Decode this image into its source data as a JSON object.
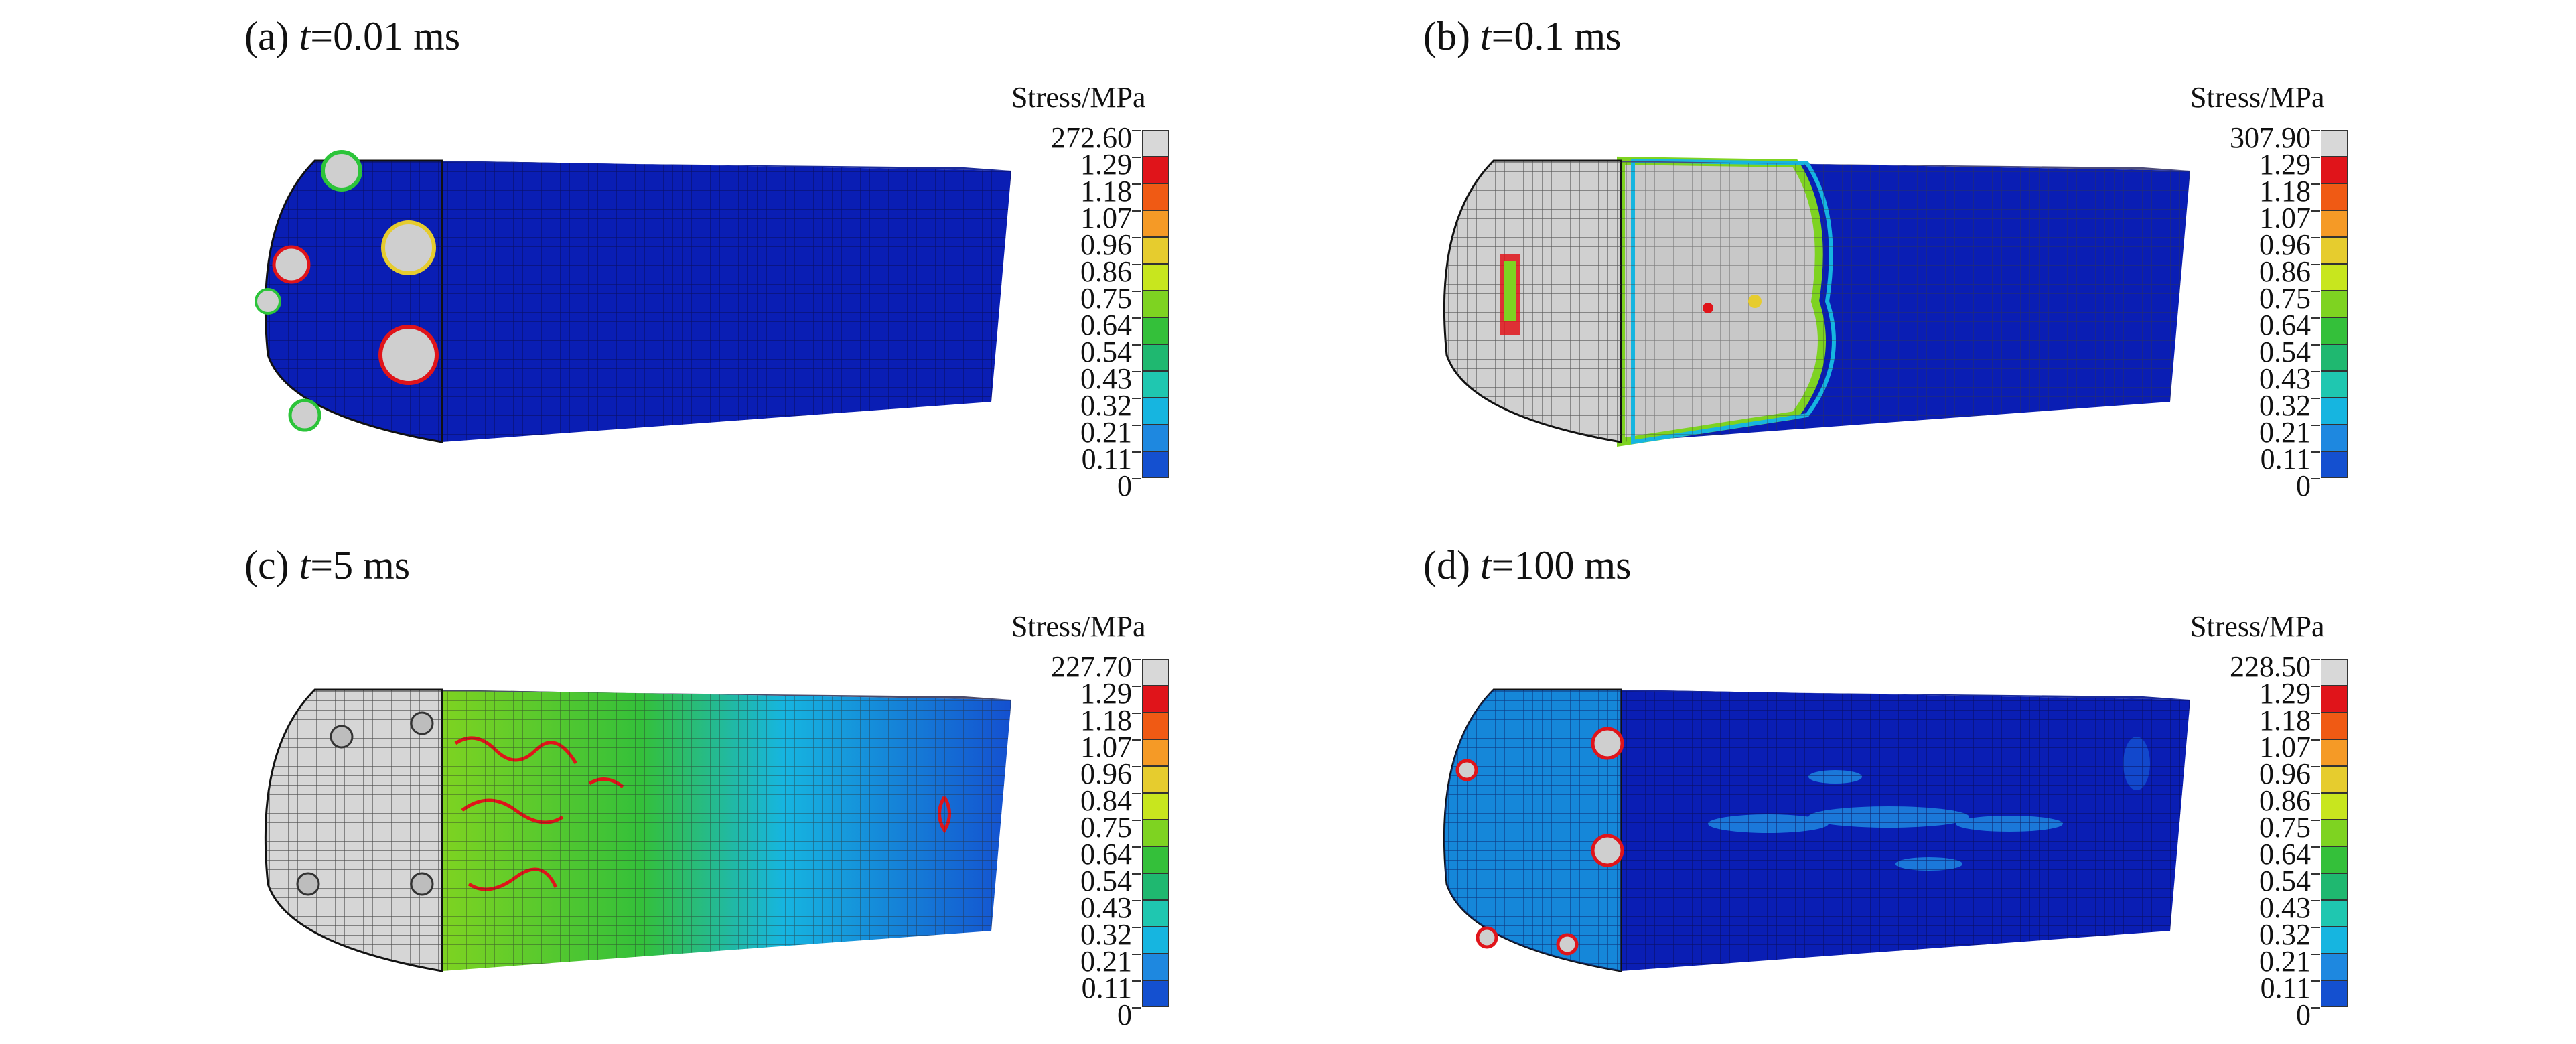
{
  "panels": [
    {
      "prefix": "(a) ",
      "tvar": "t",
      "time": "=0.01 ms",
      "legend_title": "Stress/MPa",
      "levels": [
        "272.60",
        "1.29",
        "1.18",
        "1.07",
        "0.96",
        "0.86",
        "0.75",
        "0.64",
        "0.54",
        "0.43",
        "0.32",
        "0.21",
        "0.11",
        "0"
      ]
    },
    {
      "prefix": "(b) ",
      "tvar": "t",
      "time": "=0.1 ms",
      "legend_title": "Stress/MPa",
      "levels": [
        "307.90",
        "1.29",
        "1.18",
        "1.07",
        "0.96",
        "0.86",
        "0.75",
        "0.64",
        "0.54",
        "0.43",
        "0.32",
        "0.21",
        "0.11",
        "0"
      ]
    },
    {
      "prefix": "(c) ",
      "tvar": "t",
      "time": "=5 ms",
      "legend_title": "Stress/MPa",
      "levels": [
        "227.70",
        "1.29",
        "1.18",
        "1.07",
        "0.96",
        "0.84",
        "0.75",
        "0.64",
        "0.54",
        "0.43",
        "0.32",
        "0.21",
        "0.11",
        "0"
      ]
    },
    {
      "prefix": "(d) ",
      "tvar": "t",
      "time": "=100 ms",
      "legend_title": "Stress/MPa",
      "levels": [
        "228.50",
        "1.29",
        "1.18",
        "1.07",
        "0.96",
        "0.86",
        "0.75",
        "0.64",
        "0.54",
        "0.43",
        "0.32",
        "0.21",
        "0.11",
        "0"
      ]
    }
  ],
  "colormap": [
    "#d8d8d8",
    "#e0141a",
    "#f05a14",
    "#f59a26",
    "#e6cc2e",
    "#c8e61e",
    "#7ed321",
    "#34c03a",
    "#1fb870",
    "#1fc7b0",
    "#16b5e0",
    "#1e88e0",
    "#1450d0",
    "#0a14c8"
  ],
  "colors": {
    "background_blue": "#0a1eb4",
    "mesh_grey": "#c8c8c8",
    "mesh_line": "#3a3a3a"
  }
}
